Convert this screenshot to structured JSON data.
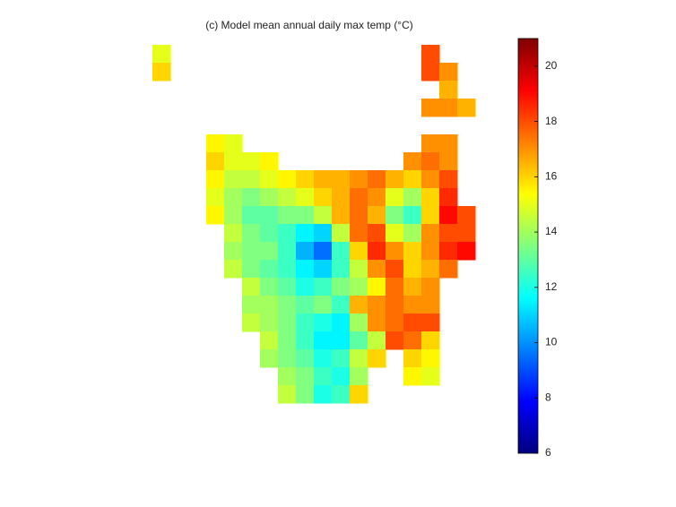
{
  "chart_data": {
    "type": "heatmap",
    "title": "(c) Model mean annual daily max temp (°C)",
    "colormap": "jet",
    "zlim": [
      6,
      21
    ],
    "zticks": [
      6,
      8,
      10,
      12,
      14,
      16,
      18,
      20
    ],
    "values": [
      [
        null,
        15,
        null,
        null,
        null,
        null,
        null,
        null,
        null,
        null,
        null,
        null,
        null,
        null,
        null,
        null,
        18,
        null,
        null
      ],
      [
        null,
        16,
        null,
        null,
        null,
        null,
        null,
        null,
        null,
        null,
        null,
        null,
        null,
        null,
        null,
        null,
        18,
        17,
        null
      ],
      [
        null,
        null,
        null,
        null,
        null,
        null,
        null,
        null,
        null,
        null,
        null,
        null,
        null,
        null,
        null,
        null,
        null,
        16.5,
        null
      ],
      [
        null,
        null,
        null,
        null,
        null,
        null,
        null,
        null,
        null,
        null,
        null,
        null,
        null,
        null,
        null,
        null,
        17,
        17,
        16.5
      ],
      [
        null,
        null,
        null,
        null,
        null,
        null,
        null,
        null,
        null,
        null,
        null,
        null,
        null,
        null,
        null,
        null,
        null,
        null,
        null
      ],
      [
        null,
        null,
        null,
        null,
        15.5,
        15,
        null,
        null,
        null,
        null,
        null,
        null,
        null,
        null,
        null,
        null,
        17,
        17,
        null
      ],
      [
        null,
        null,
        null,
        null,
        16,
        15,
        15,
        15.5,
        null,
        null,
        null,
        null,
        null,
        null,
        null,
        17,
        17.5,
        17,
        null
      ],
      [
        null,
        null,
        null,
        null,
        15.5,
        14.5,
        14.5,
        15,
        15.5,
        16,
        16.5,
        16.5,
        17,
        17.5,
        16.5,
        16,
        17,
        18,
        null
      ],
      [
        null,
        null,
        null,
        null,
        15,
        14,
        13.5,
        14,
        14.5,
        15,
        16,
        16.5,
        17.5,
        17,
        15,
        14,
        16,
        18.5,
        null
      ],
      [
        null,
        null,
        null,
        null,
        15.5,
        14,
        13,
        13,
        13.5,
        13.5,
        14.5,
        16.5,
        17.5,
        16.5,
        13.5,
        12.5,
        16,
        19,
        18
      ],
      [
        null,
        null,
        null,
        null,
        null,
        14.5,
        13.5,
        13,
        12.5,
        11.5,
        11,
        14.5,
        17.5,
        18,
        15,
        14,
        17,
        18,
        18
      ],
      [
        null,
        null,
        null,
        null,
        null,
        14,
        13.5,
        13.5,
        12.5,
        10.5,
        9.5,
        12.5,
        16,
        18.5,
        17,
        16,
        17,
        18.5,
        19
      ],
      [
        null,
        null,
        null,
        null,
        null,
        14.5,
        13.5,
        13,
        12.5,
        11.5,
        11,
        12.5,
        14.5,
        17,
        18,
        16,
        16.5,
        17.5,
        null
      ],
      [
        null,
        null,
        null,
        null,
        null,
        null,
        14.5,
        13.5,
        13,
        12,
        12.5,
        13.5,
        14,
        15.5,
        17.5,
        16.5,
        17,
        null,
        null
      ],
      [
        null,
        null,
        null,
        null,
        null,
        null,
        14,
        14,
        13.5,
        13,
        13.5,
        12.5,
        16.5,
        17,
        17.5,
        17,
        17,
        null,
        null
      ],
      [
        null,
        null,
        null,
        null,
        null,
        null,
        14.5,
        14,
        13.5,
        12.5,
        12,
        11.5,
        14,
        17,
        17.5,
        18,
        18,
        null,
        null
      ],
      [
        null,
        null,
        null,
        null,
        null,
        null,
        null,
        14.5,
        13.5,
        12.5,
        11.5,
        11.5,
        13,
        14.5,
        18,
        17.5,
        16,
        null,
        null
      ],
      [
        null,
        null,
        null,
        null,
        null,
        null,
        null,
        14,
        13.5,
        13,
        12,
        12.5,
        14.5,
        16,
        null,
        16,
        15.5,
        null,
        null
      ],
      [
        null,
        null,
        null,
        null,
        null,
        null,
        null,
        null,
        14,
        13.5,
        12.5,
        12,
        14,
        null,
        null,
        15.5,
        15,
        null,
        null
      ],
      [
        null,
        null,
        null,
        null,
        null,
        null,
        null,
        null,
        14.5,
        13.5,
        12,
        12.5,
        16,
        null,
        null,
        null,
        null,
        null,
        null
      ]
    ]
  }
}
